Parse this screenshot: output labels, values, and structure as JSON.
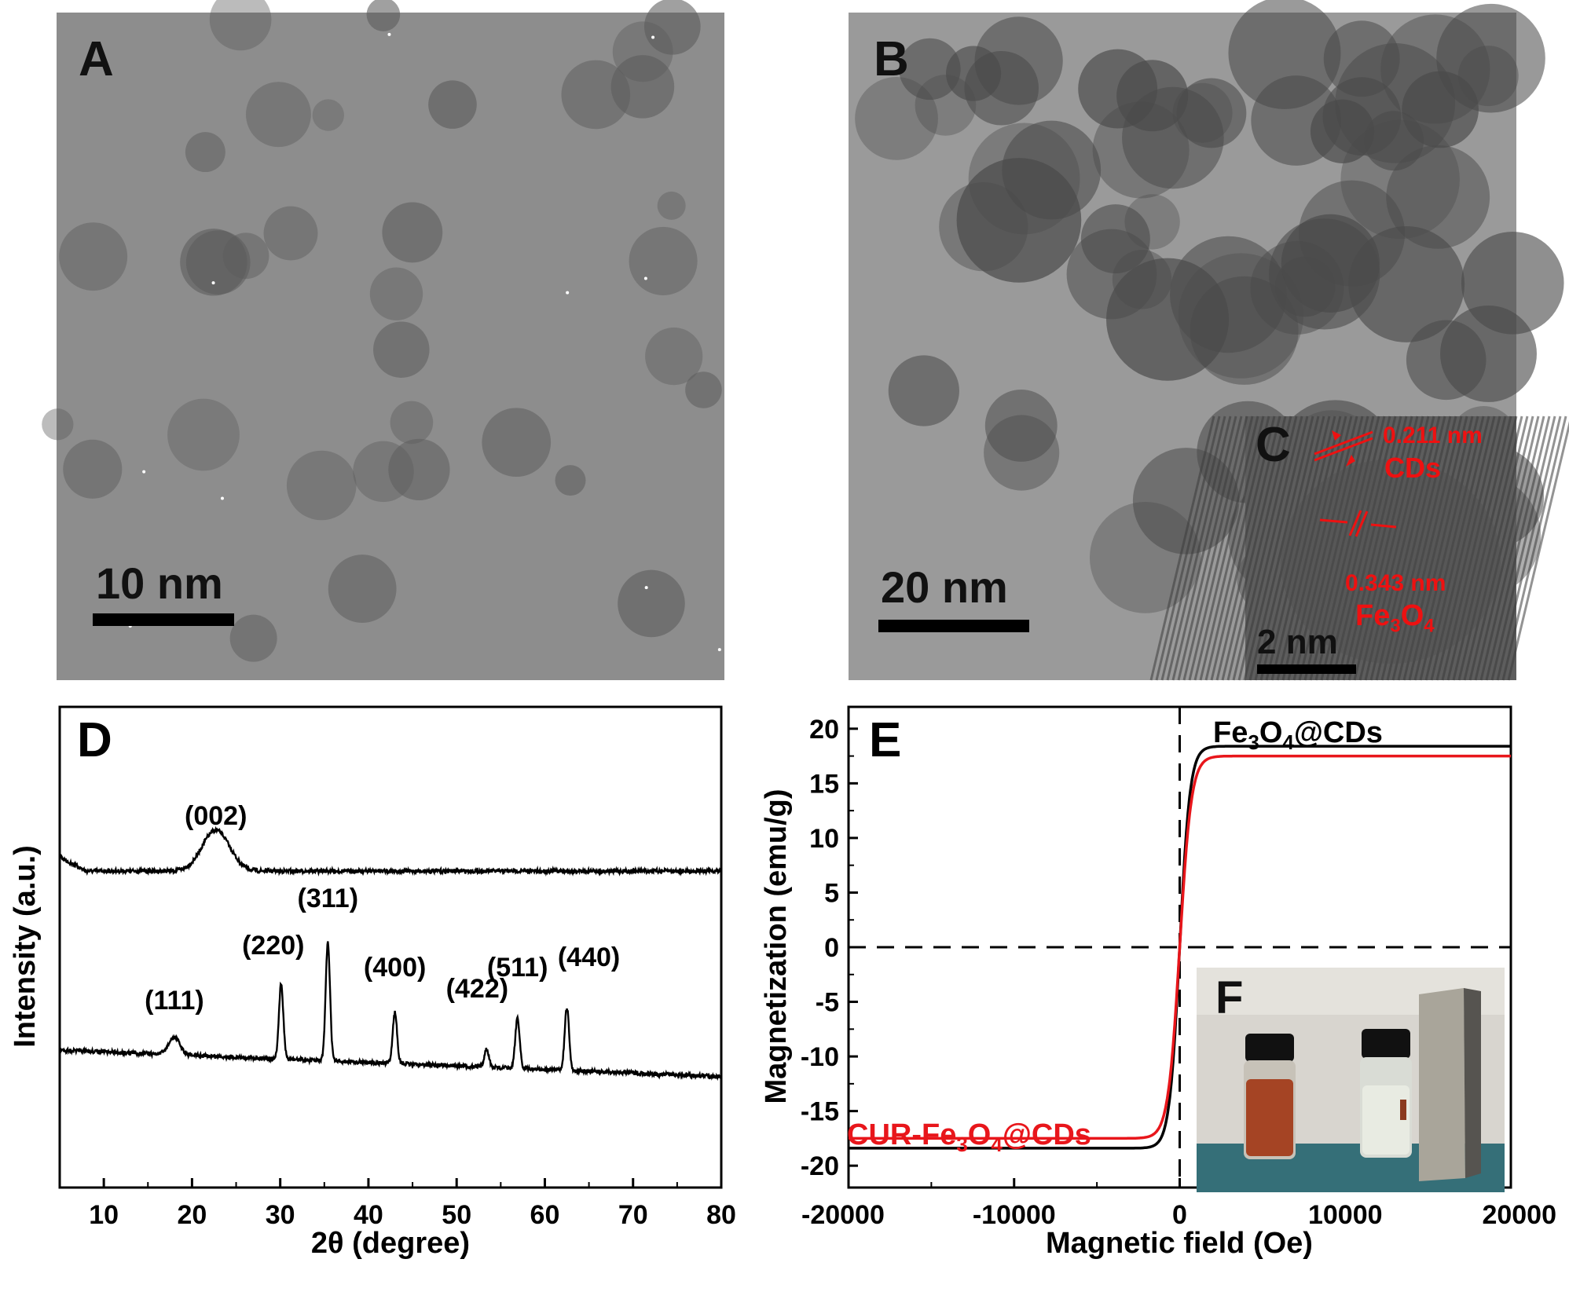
{
  "panels": {
    "a": {
      "letter": "A",
      "scale_label": "10 nm"
    },
    "b": {
      "letter": "B",
      "scale_label": "20 nm"
    },
    "c": {
      "letter": "C",
      "scale_label": "2 nm",
      "annotations": {
        "spacing1": "0.211 nm",
        "label1": "CDs",
        "spacing2": "0.343 nm",
        "label2_main": "Fe",
        "label2_sub1": "3",
        "label2_mid": "O",
        "label2_sub2": "4"
      }
    },
    "d": {
      "letter": "D"
    },
    "e": {
      "letter": "E"
    },
    "f": {
      "letter": "F"
    }
  },
  "colors": {
    "black_series": "#000000",
    "red_series": "#e8161b",
    "annotation_red": "#ee1111"
  },
  "chart_data": [
    {
      "panel": "D",
      "type": "line",
      "xlabel": "2θ (degree)",
      "ylabel": "Intensity (a.u.)",
      "xlim": [
        5,
        80
      ],
      "x_ticks": [
        10,
        20,
        30,
        40,
        50,
        60,
        70,
        80
      ],
      "y_ticks_labeled": false,
      "series": [
        {
          "trace": "upper",
          "peaks": [
            {
              "x": 22.7,
              "label": "(002)"
            }
          ]
        },
        {
          "trace": "lower",
          "peaks": [
            {
              "x": 18.0,
              "label": "(111)"
            },
            {
              "x": 30.1,
              "label": "(220)"
            },
            {
              "x": 35.4,
              "label": "(311)"
            },
            {
              "x": 43.0,
              "label": "(400)"
            },
            {
              "x": 53.4,
              "label": "(422)"
            },
            {
              "x": 56.9,
              "label": "(511)"
            },
            {
              "x": 62.5,
              "label": "(440)"
            }
          ]
        }
      ]
    },
    {
      "panel": "E",
      "type": "line",
      "xlabel": "Magnetic field (Oe)",
      "ylabel": "Magnetization (emu/g)",
      "xlim": [
        -20000,
        20000
      ],
      "ylim": [
        -22,
        22
      ],
      "x_ticks": [
        -20000,
        -10000,
        0,
        10000,
        20000
      ],
      "x_tick_labels": [
        "-20000",
        "-10000",
        "0",
        "10000",
        "20000"
      ],
      "y_ticks": [
        -20,
        -15,
        -10,
        -5,
        0,
        5,
        10,
        15,
        20
      ],
      "y_tick_labels": [
        "-20",
        "-15",
        "-10",
        "-5",
        "0",
        "5",
        "10",
        "15",
        "20"
      ],
      "series": [
        {
          "name_parts": [
            "Fe",
            "3",
            "O",
            "4",
            "@CDs"
          ],
          "color": "#000000",
          "saturation": 18.4
        },
        {
          "name_parts": [
            "CUR-Fe",
            "3",
            "O",
            "4",
            "@CDs"
          ],
          "color": "#e8161b",
          "saturation": 17.5
        }
      ]
    }
  ]
}
